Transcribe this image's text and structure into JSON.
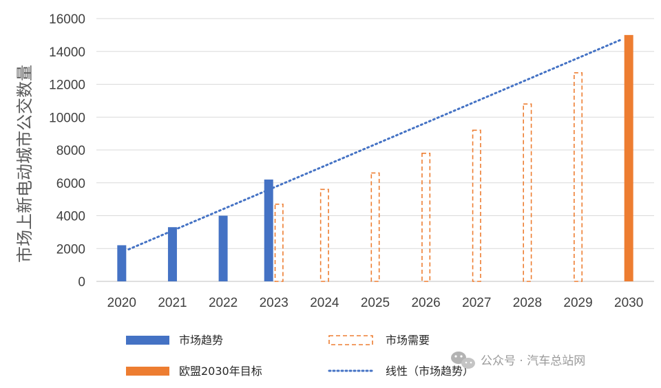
{
  "chart_data": {
    "type": "bar",
    "title": "",
    "ylabel": "市场上新电动城市公交数量",
    "xlabel": "",
    "ylim": [
      0,
      16000
    ],
    "yticks": [
      "0",
      "2000",
      "4000",
      "6000",
      "8000",
      "10000",
      "12000",
      "14000",
      "16000"
    ],
    "categories": [
      "2020",
      "2021",
      "2022",
      "2023",
      "2024",
      "2025",
      "2026",
      "2027",
      "2028",
      "2029",
      "2030"
    ],
    "series": [
      {
        "name": "市场趋势",
        "style": "solid-bar",
        "color": "#4472C4",
        "values": [
          2200,
          3300,
          4000,
          6200,
          null,
          null,
          null,
          null,
          null,
          null,
          null
        ]
      },
      {
        "name": "市场需要",
        "style": "dashed-bar",
        "color": "#ED7D31",
        "values": [
          null,
          null,
          null,
          4700,
          5600,
          6600,
          7800,
          9200,
          10800,
          12700,
          null
        ]
      },
      {
        "name": "欧盟2030年目标",
        "style": "solid-bar",
        "color": "#ED7D31",
        "values": [
          null,
          null,
          null,
          null,
          null,
          null,
          null,
          null,
          null,
          null,
          15000
        ]
      },
      {
        "name": "线性（市场趋势）",
        "style": "dotted-line",
        "color": "#4472C4",
        "start": {
          "x": "2020",
          "y": 1950
        },
        "end": {
          "x": "2030",
          "y": 14700
        }
      }
    ],
    "legend": {
      "placement": "bottom",
      "items": [
        {
          "label": "市场趋势",
          "series": "市场趋势"
        },
        {
          "label": "市场需要",
          "series": "市场需要"
        },
        {
          "label": "欧盟2030年目标",
          "series": "欧盟2030年目标"
        },
        {
          "label": "线性（市场趋势）",
          "series": "线性（市场趋势）"
        }
      ]
    },
    "gridlines": true
  },
  "watermark": {
    "text": "公众号 · 汽车总站网",
    "icon": "wechat-icon"
  }
}
